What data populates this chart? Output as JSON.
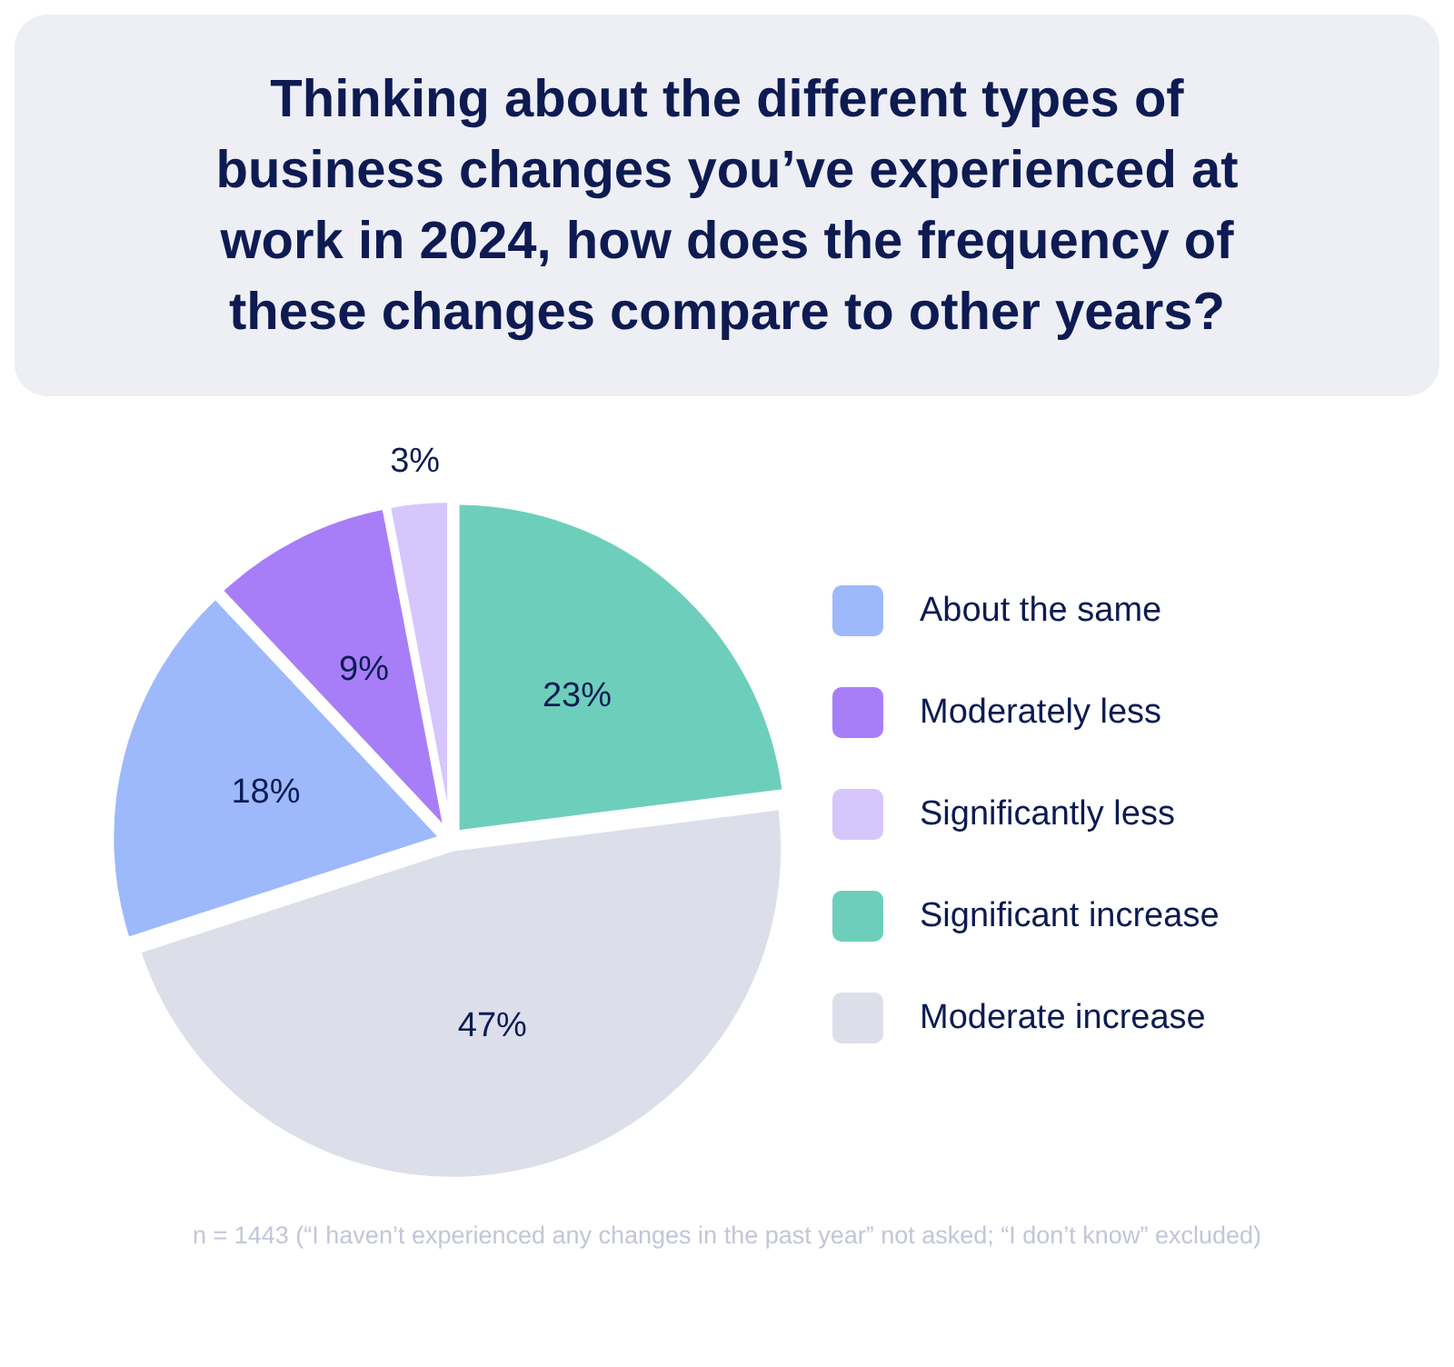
{
  "chart_data": {
    "type": "pie",
    "title": "Thinking about the different types of business changes you’ve experienced at work in 2024, how does the frequency of these changes compare to other years?",
    "categories": [
      "About the same",
      "Moderately less",
      "Significantly less",
      "Significant increase",
      "Moderate increase"
    ],
    "values": [
      18,
      9,
      3,
      23,
      47
    ],
    "colors": [
      "#9db9fb",
      "#a77ef8",
      "#d6c6fc",
      "#6dcfbb",
      "#dcdeea"
    ],
    "value_labels": [
      "18%",
      "9%",
      "3%",
      "23%",
      "47%"
    ],
    "legend": "right",
    "annotations": [
      "n = 1443 (“I haven’t experienced any changes in the past year” not asked; “I don’t know” excluded)"
    ]
  }
}
